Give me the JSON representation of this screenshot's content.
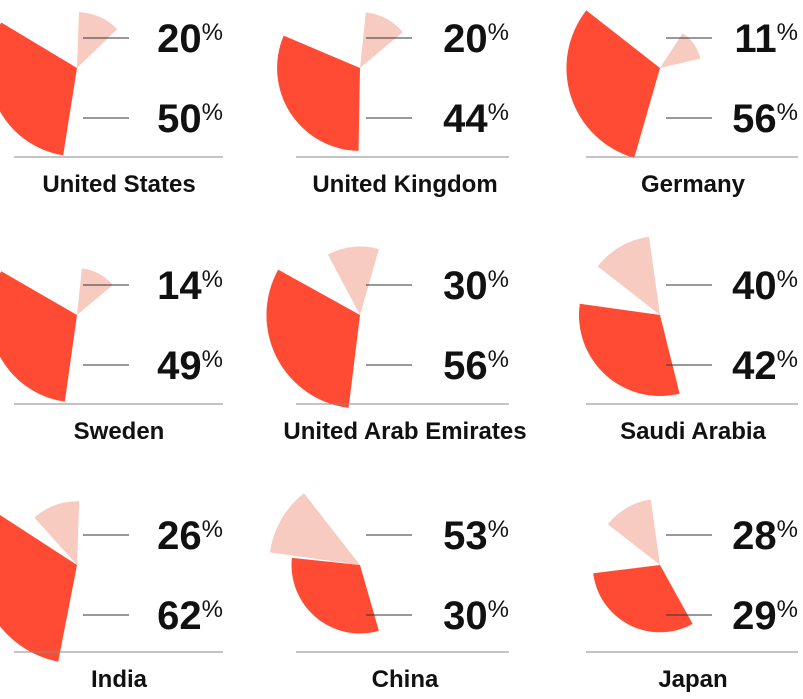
{
  "colors": {
    "background": "#ffffff",
    "series_light": "#f8cbc1",
    "series_dark": "#ff4b33",
    "rule": "#888888",
    "leader": "#333333",
    "text": "#111111"
  },
  "chart_data": {
    "type": "pie",
    "layout": "small-multiples 3x3 polar-area (two wedges per country)",
    "value_unit": "%",
    "series": [
      {
        "key": "light",
        "color": "#f8cbc1",
        "values": [
          20,
          20,
          11,
          14,
          30,
          40,
          26,
          53,
          28
        ]
      },
      {
        "key": "dark",
        "color": "#ff4b33",
        "values": [
          50,
          44,
          56,
          49,
          56,
          42,
          62,
          30,
          29
        ]
      }
    ],
    "panels": [
      {
        "country": "United States",
        "light": 20,
        "dark": 50,
        "light_label": "20",
        "dark_label": "50"
      },
      {
        "country": "United Kingdom",
        "light": 20,
        "dark": 44,
        "light_label": "20",
        "dark_label": "44"
      },
      {
        "country": "Germany",
        "light": 11,
        "dark": 56,
        "light_label": "11",
        "dark_label": "56"
      },
      {
        "country": "Sweden",
        "light": 14,
        "dark": 49,
        "light_label": "14",
        "dark_label": "49"
      },
      {
        "country": "United Arab Emirates",
        "light": 30,
        "dark": 56,
        "light_label": "30",
        "dark_label": "56"
      },
      {
        "country": "Saudi Arabia",
        "light": 40,
        "dark": 42,
        "light_label": "40",
        "dark_label": "42"
      },
      {
        "country": "India",
        "light": 26,
        "dark": 62,
        "light_label": "26",
        "dark_label": "62"
      },
      {
        "country": "China",
        "light": 53,
        "dark": 30,
        "light_label": "53",
        "dark_label": "30"
      },
      {
        "country": "Japan",
        "light": 28,
        "dark": 29,
        "light_label": "28",
        "dark_label": "29"
      }
    ]
  }
}
